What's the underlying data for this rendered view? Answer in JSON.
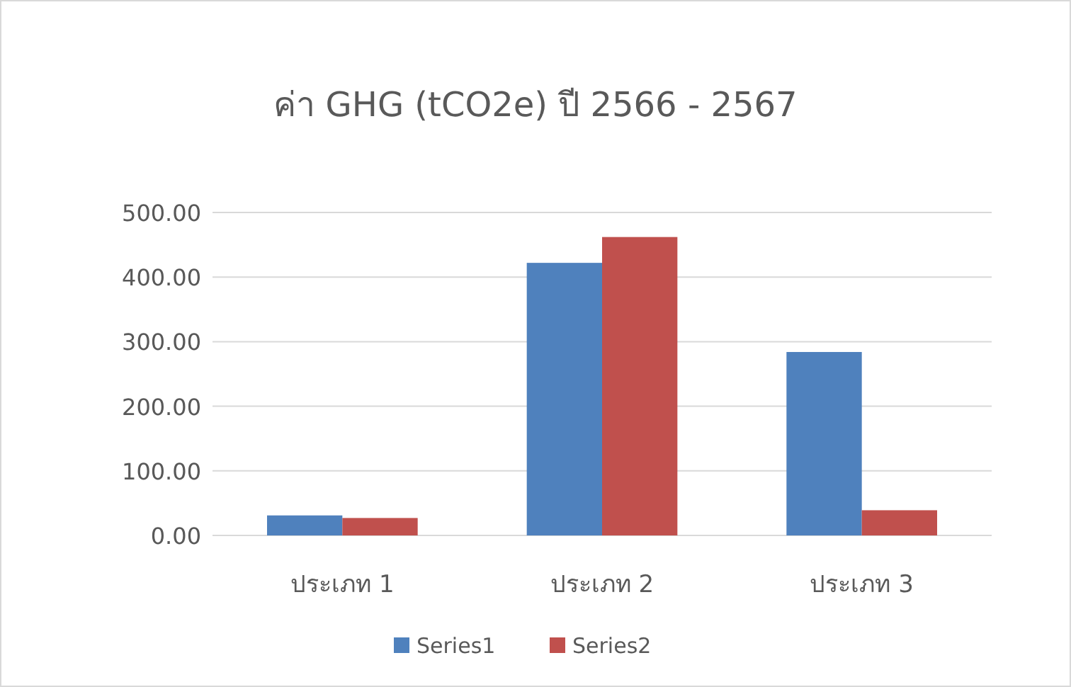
{
  "chart_data": {
    "type": "bar",
    "title": "ค่า GHG (tCO2e) ปี 2566 - 2567",
    "categories": [
      "ประเภท 1",
      "ประเภท 2",
      "ประเภท 3"
    ],
    "series": [
      {
        "name": "Series1",
        "color": "#4f81bd",
        "values": [
          31,
          422,
          284
        ]
      },
      {
        "name": "Series2",
        "color": "#c0504d",
        "values": [
          27,
          462,
          39
        ]
      }
    ],
    "ylim": [
      0,
      500
    ],
    "yticks": [
      {
        "value": 0,
        "label": "0.00"
      },
      {
        "value": 100,
        "label": "100.00"
      },
      {
        "value": 200,
        "label": "200.00"
      },
      {
        "value": 300,
        "label": "300.00"
      },
      {
        "value": 400,
        "label": "400.00"
      },
      {
        "value": 500,
        "label": "500.00"
      }
    ],
    "grid": "y",
    "legend": "bottom"
  }
}
